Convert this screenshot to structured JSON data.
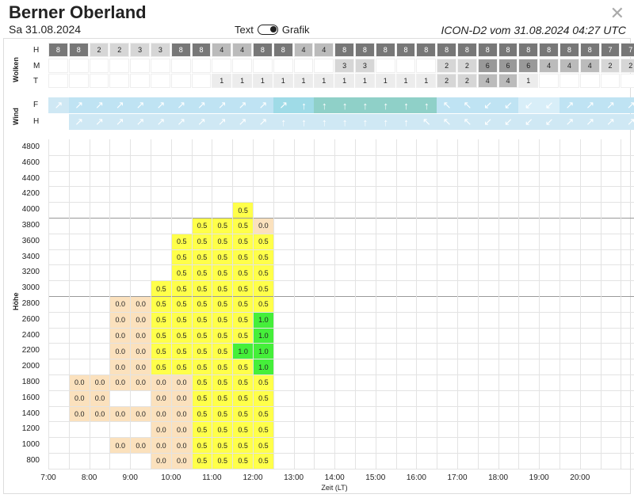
{
  "header": {
    "title": "Berner Oberland",
    "date": "Sa 31.08.2024",
    "toggle_left": "Text",
    "toggle_right": "Grafik",
    "model_run": "ICON-D2 vom 31.08.2024 04:27 UTC",
    "close_icon": "close-icon"
  },
  "clouds": {
    "label": "Wolken",
    "rows": [
      {
        "label": "H",
        "values": [
          "8",
          "8",
          "2",
          "2",
          "3",
          "3",
          "8",
          "8",
          "4",
          "4",
          "8",
          "8",
          "4",
          "4",
          "8",
          "8",
          "8",
          "8",
          "8",
          "8",
          "8",
          "8",
          "8",
          "8",
          "8",
          "8",
          "8",
          "7",
          "7"
        ]
      },
      {
        "label": "M",
        "values": [
          "",
          "",
          "",
          "",
          "",
          "",
          "",
          "",
          "",
          "",
          "",
          "",
          "",
          "",
          "3",
          "3",
          "",
          "",
          "",
          "2",
          "2",
          "6",
          "6",
          "6",
          "4",
          "4",
          "4",
          "2",
          "2"
        ]
      },
      {
        "label": "T",
        "values": [
          "",
          "",
          "",
          "",
          "",
          "",
          "",
          "",
          "1",
          "1",
          "1",
          "1",
          "1",
          "1",
          "1",
          "1",
          "1",
          "1",
          "1",
          "2",
          "2",
          "4",
          "4",
          "1",
          "",
          "",
          "",
          "",
          ""
        ]
      }
    ]
  },
  "wind": {
    "label": "Wind",
    "rows": [
      {
        "label": "F",
        "colors": [
          "#cfe8f4",
          "#bfe3f3",
          "#bfe3f3",
          "#bfe3f3",
          "#bfe3f3",
          "#bfe3f3",
          "#bfe3f3",
          "#bfe3f3",
          "#bfe3f3",
          "#bfe3f3",
          "#bfe3f3",
          "#9fdbe7",
          "#9fdbe7",
          "#8fd0c8",
          "#8fd0c8",
          "#8fd0c8",
          "#8fd0c8",
          "#8fd0c8",
          "#8fd0c8",
          "#bfe3f3",
          "#bfe3f3",
          "#bfe3f3",
          "#bfe3f3",
          "#d8eef8",
          "#d8eef8",
          "#bfe3f3",
          "#bfe3f3",
          "#bfe3f3",
          "#bfe3f3"
        ],
        "arrows": [
          "↗",
          "↗",
          "↗",
          "↗",
          "↗",
          "↗",
          "↗",
          "↗",
          "↗",
          "↗",
          "↗",
          "↗",
          "↑",
          "↑",
          "↑",
          "↑",
          "↑",
          "↑",
          "↑",
          "↖",
          "↖",
          "↙",
          "↙",
          "↙",
          "↙",
          "↗",
          "↗",
          "↗",
          "↗"
        ]
      },
      {
        "label": "H",
        "colors": [
          "#ffffff",
          "#cfe8f4",
          "#cfe8f4",
          "#cfe8f4",
          "#cfe8f4",
          "#cfe8f4",
          "#cfe8f4",
          "#cfe8f4",
          "#cfe8f4",
          "#cfe8f4",
          "#cfe8f4",
          "#cfe8f4",
          "#cfe8f4",
          "#cfe8f4",
          "#cfe8f4",
          "#cfe8f4",
          "#cfe8f4",
          "#cfe8f4",
          "#cfe8f4",
          "#cfe8f4",
          "#cfe8f4",
          "#cfe8f4",
          "#cfe8f4",
          "#cfe8f4",
          "#cfe8f4",
          "#cfe8f4",
          "#cfe8f4",
          "#cfe8f4",
          "#cfe8f4"
        ],
        "arrows": [
          "",
          "↗",
          "↗",
          "↗",
          "↗",
          "↗",
          "↗",
          "↗",
          "↗",
          "↗",
          "↗",
          "↑",
          "↑",
          "↑",
          "↑",
          "↑",
          "↑",
          "↑",
          "↖",
          "↖",
          "↖",
          "↙",
          "↙",
          "↙",
          "↙",
          "↗",
          "↗",
          "↗",
          "↗"
        ]
      }
    ]
  },
  "chart": {
    "ylabel": "Höhe",
    "xlabel": "Zeit (LT)",
    "y_ticks": [
      "4800",
      "4600",
      "4400",
      "4200",
      "4000",
      "3800",
      "3600",
      "3400",
      "3200",
      "3000",
      "2800",
      "2600",
      "2400",
      "2200",
      "2000",
      "1800",
      "1600",
      "1400",
      "1200",
      "1000",
      "800"
    ],
    "x_ticks": [
      "7:00",
      "8:00",
      "9:00",
      "10:00",
      "11:00",
      "12:00",
      "13:00",
      "14:00",
      "15:00",
      "16:00",
      "17:00",
      "18:00",
      "19:00",
      "20:00"
    ]
  },
  "legend_colors": {
    "0.0": "#fbe1bd",
    "0.5": "#ffff4a",
    "1.0": "#45ef3a",
    "1.5": "#4ebf8e",
    "2.0": "#23c5c8",
    "2.5": "#5d86df"
  },
  "thermal_cols": [
    {
      "start": 1400,
      "vals": [
        "0.0",
        "0.0",
        "0.0"
      ]
    },
    {
      "start": 1400,
      "vals": [
        "0.0",
        "0.0",
        "0.0"
      ]
    },
    {
      "start": 1000,
      "vals": [
        "0.0",
        "",
        "0.0",
        "",
        "0.0",
        "0.0",
        "0.0",
        "0.0",
        "0.0",
        "0.0"
      ]
    },
    {
      "start": 1000,
      "vals": [
        "0.0",
        "",
        "0.0",
        "",
        "0.0",
        "0.0",
        "0.0",
        "0.0",
        "0.0",
        "0.0"
      ]
    },
    {
      "start": 800,
      "vals": [
        "0.0",
        "0.0",
        "0.0",
        "0.0",
        "0.0",
        "0.0",
        "0.5",
        "0.5",
        "0.5",
        "0.5",
        "0.5",
        "0.5"
      ]
    },
    {
      "start": 800,
      "vals": [
        "0.0",
        "0.0",
        "0.0",
        "0.0",
        "0.0",
        "0.0",
        "0.5",
        "0.5",
        "0.5",
        "0.5",
        "0.5",
        "0.5",
        "0.5",
        "0.5",
        "0.5"
      ]
    },
    {
      "start": 800,
      "vals": [
        "0.5",
        "0.5",
        "0.5",
        "0.5",
        "0.5",
        "0.5",
        "0.5",
        "0.5",
        "0.5",
        "0.5",
        "0.5",
        "0.5",
        "0.5",
        "0.5",
        "0.5",
        "0.5"
      ]
    },
    {
      "start": 800,
      "vals": [
        "0.5",
        "0.5",
        "0.5",
        "0.5",
        "0.5",
        "0.5",
        "0.5",
        "0.5",
        "0.5",
        "0.5",
        "0.5",
        "0.5",
        "0.5",
        "0.5",
        "0.5",
        "0.5"
      ]
    },
    {
      "start": 800,
      "vals": [
        "0.5",
        "0.5",
        "0.5",
        "0.5",
        "0.5",
        "0.5",
        "0.5",
        "1.0",
        "0.5",
        "0.5",
        "0.5",
        "0.5",
        "0.5",
        "0.5",
        "0.5",
        "0.5",
        "0.5"
      ]
    },
    {
      "start": 800,
      "vals": [
        "0.5",
        "0.5",
        "0.5",
        "0.5",
        "0.5",
        "0.5",
        "1.0",
        "1.0",
        "1.0",
        "1.0",
        "0.5",
        "0.5",
        "0.5",
        "0.5",
        "0.5",
        "0.0"
      ]
    }
  ]
}
